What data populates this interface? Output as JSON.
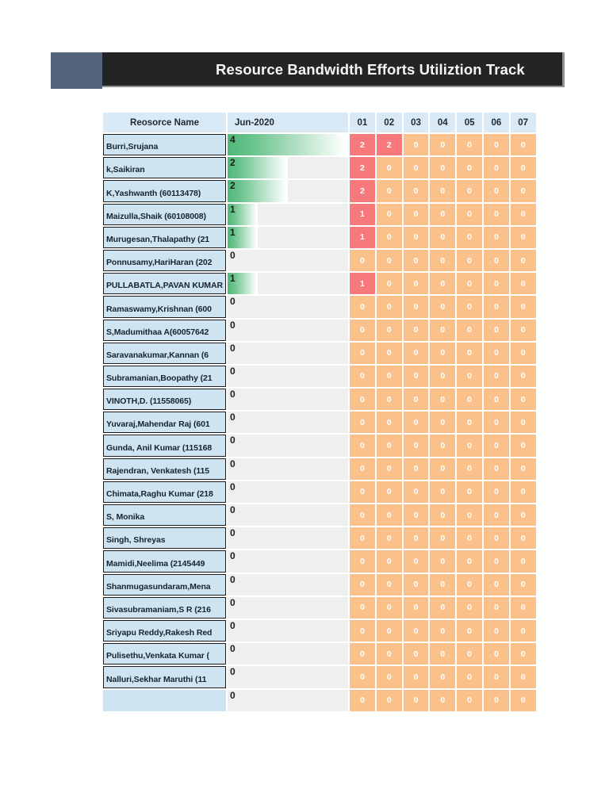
{
  "title": {
    "text": "Resource Bandwidth Efforts Utiliztion Track"
  },
  "table": {
    "name_header": "Reosorce Name",
    "month_header": "Jun-2020",
    "day_headers": [
      "01",
      "02",
      "03",
      "04",
      "05",
      "06",
      "07"
    ],
    "bar_max": 4,
    "rows": [
      {
        "name": "Burri,Srujana",
        "total": 4,
        "days": [
          2,
          2,
          0,
          0,
          0,
          0,
          0
        ]
      },
      {
        "name": "k,Saikiran",
        "total": 2,
        "days": [
          2,
          0,
          0,
          0,
          0,
          0,
          0
        ]
      },
      {
        "name": "K,Yashwanth (60113478)",
        "total": 2,
        "days": [
          2,
          0,
          0,
          0,
          0,
          0,
          0
        ]
      },
      {
        "name": "Maizulla,Shaik (60108008)",
        "total": 1,
        "days": [
          1,
          0,
          0,
          0,
          0,
          0,
          0
        ]
      },
      {
        "name": "Murugesan,Thalapathy (21",
        "total": 1,
        "days": [
          1,
          0,
          0,
          0,
          0,
          0,
          0
        ]
      },
      {
        "name": "Ponnusamy,HariHaran (202",
        "total": 0,
        "days": [
          0,
          0,
          0,
          0,
          0,
          0,
          0
        ]
      },
      {
        "name": "PULLABATLA,PAVAN KUMAR",
        "total": 1,
        "days": [
          1,
          0,
          0,
          0,
          0,
          0,
          0
        ]
      },
      {
        "name": "Ramaswamy,Krishnan (600",
        "total": 0,
        "days": [
          0,
          0,
          0,
          0,
          0,
          0,
          0
        ]
      },
      {
        "name": "S,Madumithaa A(60057642",
        "total": 0,
        "days": [
          0,
          0,
          0,
          0,
          0,
          0,
          0
        ]
      },
      {
        "name": "Saravanakumar,Kannan (6",
        "total": 0,
        "days": [
          0,
          0,
          0,
          0,
          0,
          0,
          0
        ]
      },
      {
        "name": "Subramanian,Boopathy (21",
        "total": 0,
        "days": [
          0,
          0,
          0,
          0,
          0,
          0,
          0
        ]
      },
      {
        "name": "VINOTH,D. (11558065)",
        "total": 0,
        "days": [
          0,
          0,
          0,
          0,
          0,
          0,
          0
        ]
      },
      {
        "name": "Yuvaraj,Mahendar Raj (601",
        "total": 0,
        "days": [
          0,
          0,
          0,
          0,
          0,
          0,
          0
        ]
      },
      {
        "name": "Gunda, Anil Kumar (115168",
        "total": 0,
        "days": [
          0,
          0,
          0,
          0,
          0,
          0,
          0
        ]
      },
      {
        "name": "Rajendran, Venkatesh (115",
        "total": 0,
        "days": [
          0,
          0,
          0,
          0,
          0,
          0,
          0
        ]
      },
      {
        "name": "Chimata,Raghu Kumar (218",
        "total": 0,
        "days": [
          0,
          0,
          0,
          0,
          0,
          0,
          0
        ]
      },
      {
        "name": "S, Monika",
        "total": 0,
        "days": [
          0,
          0,
          0,
          0,
          0,
          0,
          0
        ]
      },
      {
        "name": "Singh, Shreyas",
        "total": 0,
        "days": [
          0,
          0,
          0,
          0,
          0,
          0,
          0
        ]
      },
      {
        "name": "Mamidi,Neelima (2145449",
        "total": 0,
        "days": [
          0,
          0,
          0,
          0,
          0,
          0,
          0
        ]
      },
      {
        "name": "Shanmugasundaram,Mena",
        "total": 0,
        "days": [
          0,
          0,
          0,
          0,
          0,
          0,
          0
        ]
      },
      {
        "name": "Sivasubramaniam,S R (216",
        "total": 0,
        "days": [
          0,
          0,
          0,
          0,
          0,
          0,
          0
        ]
      },
      {
        "name": "Sriyapu Reddy,Rakesh Red",
        "total": 0,
        "days": [
          0,
          0,
          0,
          0,
          0,
          0,
          0
        ]
      },
      {
        "name": "Pulisethu,Venkata Kumar (",
        "total": 0,
        "days": [
          0,
          0,
          0,
          0,
          0,
          0,
          0
        ]
      },
      {
        "name": "Nalluri,Sekhar Maruthi (11",
        "total": 0,
        "days": [
          0,
          0,
          0,
          0,
          0,
          0,
          0
        ]
      },
      {
        "name": "",
        "total": 0,
        "days": [
          0,
          0,
          0,
          0,
          0,
          0,
          0
        ]
      }
    ]
  },
  "colors": {
    "accent_block": "#54647A",
    "title_bar_bg": "#242424",
    "title_text": "#F5F5F5",
    "header_blue": "#D9E9F5",
    "name_cell_blue": "#CFE4F2",
    "bar_cell_gray": "#EFEFEF",
    "bar_green": "#4FB87A",
    "day_zero_orange": "#FBC18A",
    "day_positive_red": "#F8797C",
    "day_text": "#FFFFFF"
  }
}
